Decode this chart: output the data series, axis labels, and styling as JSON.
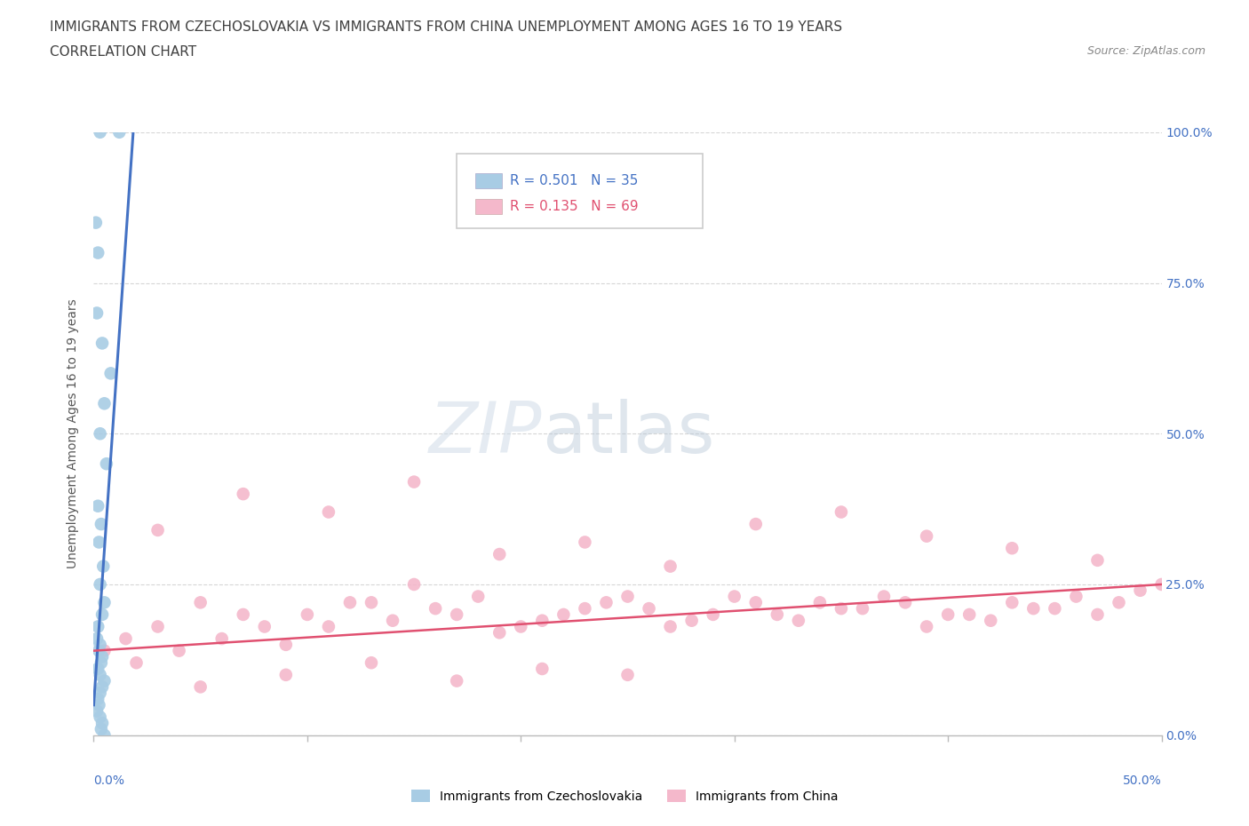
{
  "title_line1": "IMMIGRANTS FROM CZECHOSLOVAKIA VS IMMIGRANTS FROM CHINA UNEMPLOYMENT AMONG AGES 16 TO 19 YEARS",
  "title_line2": "CORRELATION CHART",
  "source_text": "Source: ZipAtlas.com",
  "ylabel": "Unemployment Among Ages 16 to 19 years",
  "y_tick_values": [
    0,
    25,
    50,
    75,
    100
  ],
  "x_tick_values": [
    0,
    10,
    20,
    30,
    40,
    50
  ],
  "legend_r1": "R = 0.501",
  "legend_n1": "N = 35",
  "legend_r2": "R = 0.135",
  "legend_n2": "N = 69",
  "color_czech": "#a8cce4",
  "color_china": "#f4b8cb",
  "color_czech_line": "#4472c4",
  "color_china_line": "#e05070",
  "color_title": "#404040",
  "color_source": "#888888",
  "color_right_axis": "#4472c4",
  "watermark_zip": "ZIP",
  "watermark_atlas": "atlas",
  "czech_x": [
    0.3,
    1.2,
    0.1,
    0.2,
    0.15,
    0.4,
    0.8,
    0.5,
    0.3,
    0.6,
    0.2,
    0.35,
    0.25,
    0.45,
    0.3,
    0.5,
    0.4,
    0.2,
    0.15,
    0.3,
    0.25,
    0.4,
    0.35,
    0.2,
    0.3,
    0.5,
    0.4,
    0.3,
    0.2,
    0.25,
    0.15,
    0.3,
    0.4,
    0.35,
    0.5
  ],
  "czech_y": [
    100,
    100,
    85,
    80,
    70,
    65,
    60,
    55,
    50,
    45,
    38,
    35,
    32,
    28,
    25,
    22,
    20,
    18,
    16,
    15,
    14,
    13,
    12,
    11,
    10,
    9,
    8,
    7,
    6,
    5,
    4,
    3,
    2,
    1,
    0
  ],
  "china_x": [
    0.5,
    1.5,
    3.0,
    5.0,
    7.0,
    9.0,
    11.0,
    13.0,
    15.0,
    17.0,
    19.0,
    21.0,
    23.0,
    25.0,
    27.0,
    29.0,
    31.0,
    33.0,
    35.0,
    37.0,
    39.0,
    41.0,
    43.0,
    45.0,
    47.0,
    49.0,
    50.0,
    2.0,
    4.0,
    6.0,
    8.0,
    10.0,
    12.0,
    14.0,
    16.0,
    18.0,
    20.0,
    22.0,
    24.0,
    26.0,
    28.0,
    30.0,
    32.0,
    34.0,
    36.0,
    38.0,
    40.0,
    42.0,
    44.0,
    46.0,
    48.0,
    3.0,
    7.0,
    11.0,
    15.0,
    19.0,
    23.0,
    27.0,
    31.0,
    35.0,
    39.0,
    43.0,
    47.0,
    5.0,
    9.0,
    13.0,
    17.0,
    21.0,
    25.0
  ],
  "china_y": [
    14,
    16,
    18,
    22,
    20,
    15,
    18,
    22,
    25,
    20,
    17,
    19,
    21,
    23,
    18,
    20,
    22,
    19,
    21,
    23,
    18,
    20,
    22,
    21,
    20,
    24,
    25,
    12,
    14,
    16,
    18,
    20,
    22,
    19,
    21,
    23,
    18,
    20,
    22,
    21,
    19,
    23,
    20,
    22,
    21,
    22,
    20,
    19,
    21,
    23,
    22,
    34,
    40,
    37,
    42,
    30,
    32,
    28,
    35,
    37,
    33,
    31,
    29,
    8,
    10,
    12,
    9,
    11,
    10
  ],
  "czech_trend_x": [
    0.0,
    1.85
  ],
  "czech_trend_y": [
    5,
    100
  ],
  "china_trend_x": [
    0.0,
    50.0
  ],
  "china_trend_y": [
    14,
    25
  ],
  "xlim": [
    0,
    50
  ],
  "ylim": [
    0,
    100
  ],
  "background_color": "#ffffff",
  "grid_color": "#cccccc",
  "title_fontsize": 11,
  "axis_label_fontsize": 10,
  "tick_fontsize": 10
}
